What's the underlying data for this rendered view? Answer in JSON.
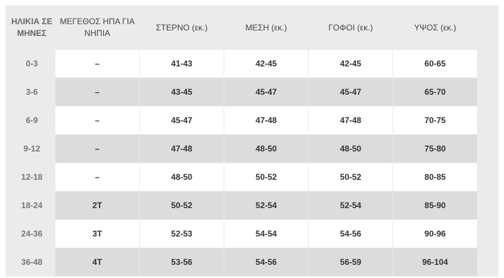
{
  "table": {
    "header": [
      "ΗΛΙΚΙΑ ΣΕ ΜΗΝΕΣ",
      "ΜΕΓΕΘΟΣ ΗΠΑ ΓΙΑ ΝΗΠΙΑ",
      "ΣΤΕΡΝΟ (εκ.)",
      "ΜΕΣΗ (εκ.)",
      "ΓΟΦΟΙ (εκ.)",
      "ΥΨΟΣ (εκ.)"
    ],
    "rows": [
      [
        "0-3",
        "–",
        "41-43",
        "42-45",
        "42-45",
        "60-65"
      ],
      [
        "3-6",
        "–",
        "43-45",
        "45-47",
        "45-47",
        "65-70"
      ],
      [
        "6-9",
        "–",
        "45-47",
        "47-48",
        "47-48",
        "70-75"
      ],
      [
        "9-12",
        "–",
        "47-48",
        "48-50",
        "48-50",
        "75-80"
      ],
      [
        "12-18",
        "–",
        "48-50",
        "50-52",
        "50-52",
        "80-85"
      ],
      [
        "18-24",
        "2T",
        "50-52",
        "52-54",
        "52-54",
        "85-90"
      ],
      [
        "24-36",
        "3T",
        "52-53",
        "54-54",
        "54-56",
        "90-96"
      ],
      [
        "36-48",
        "4T",
        "53-56",
        "54-56",
        "56-59",
        "96-104"
      ]
    ]
  }
}
